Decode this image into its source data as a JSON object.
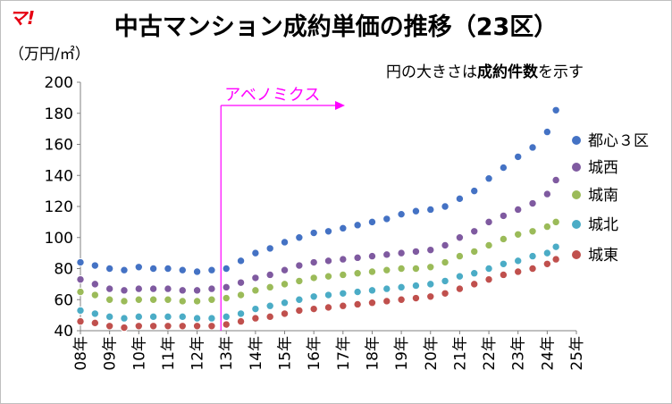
{
  "logo": "マ!",
  "title": "中古マンション成約単価の推移（23区）",
  "unit_label": "（万円/㎡）",
  "note": {
    "part1": "円の大きさは",
    "bold1": "成約件数",
    "part2": "を示す"
  },
  "annotation": "アベノミクス",
  "colors": {
    "都心3区": "#4472c4",
    "城西": "#7f5aa0",
    "城南": "#9bbb59",
    "城北": "#4bacc6",
    "城東": "#c0504d",
    "annotation": "#ff00ff"
  },
  "chart_data": {
    "type": "scatter",
    "ylim": [
      40,
      200
    ],
    "yticks": [
      40,
      60,
      80,
      100,
      120,
      140,
      160,
      180,
      200
    ],
    "x_categories": [
      "08年",
      "09年",
      "10年",
      "11年",
      "12年",
      "13年",
      "14年",
      "15年",
      "16年",
      "17年",
      "18年",
      "19年",
      "20年",
      "21年",
      "22年",
      "23年",
      "24年",
      "25年"
    ],
    "grid": false,
    "legend": "right",
    "marker_size_meaning": "成約件数",
    "annotation": {
      "label": "アベノミクス",
      "year": 2013.0
    },
    "series": [
      {
        "name": "都心３区",
        "key": "都心3区",
        "points": [
          [
            2008.0,
            84
          ],
          [
            2008.5,
            82
          ],
          [
            2009.0,
            80
          ],
          [
            2009.5,
            79
          ],
          [
            2010.0,
            81
          ],
          [
            2010.5,
            80
          ],
          [
            2011.0,
            80
          ],
          [
            2011.5,
            79
          ],
          [
            2012.0,
            78
          ],
          [
            2012.5,
            79
          ],
          [
            2013.0,
            80
          ],
          [
            2013.5,
            85
          ],
          [
            2014.0,
            90
          ],
          [
            2014.5,
            93
          ],
          [
            2015.0,
            97
          ],
          [
            2015.5,
            100
          ],
          [
            2016.0,
            103
          ],
          [
            2016.5,
            104
          ],
          [
            2017.0,
            106
          ],
          [
            2017.5,
            108
          ],
          [
            2018.0,
            110
          ],
          [
            2018.5,
            112
          ],
          [
            2019.0,
            115
          ],
          [
            2019.5,
            117
          ],
          [
            2020.0,
            118
          ],
          [
            2020.5,
            120
          ],
          [
            2021.0,
            125
          ],
          [
            2021.5,
            130
          ],
          [
            2022.0,
            138
          ],
          [
            2022.5,
            145
          ],
          [
            2023.0,
            152
          ],
          [
            2023.5,
            158
          ],
          [
            2024.0,
            168
          ],
          [
            2024.3,
            182
          ]
        ]
      },
      {
        "name": "城西",
        "key": "城西",
        "points": [
          [
            2008.0,
            73
          ],
          [
            2008.5,
            70
          ],
          [
            2009.0,
            67
          ],
          [
            2009.5,
            66
          ],
          [
            2010.0,
            67
          ],
          [
            2010.5,
            67
          ],
          [
            2011.0,
            67
          ],
          [
            2011.5,
            66
          ],
          [
            2012.0,
            66
          ],
          [
            2012.5,
            67
          ],
          [
            2013.0,
            68
          ],
          [
            2013.5,
            71
          ],
          [
            2014.0,
            74
          ],
          [
            2014.5,
            76
          ],
          [
            2015.0,
            79
          ],
          [
            2015.5,
            82
          ],
          [
            2016.0,
            84
          ],
          [
            2016.5,
            85
          ],
          [
            2017.0,
            86
          ],
          [
            2017.5,
            87
          ],
          [
            2018.0,
            88
          ],
          [
            2018.5,
            89
          ],
          [
            2019.0,
            90
          ],
          [
            2019.5,
            91
          ],
          [
            2020.0,
            92
          ],
          [
            2020.5,
            95
          ],
          [
            2021.0,
            100
          ],
          [
            2021.5,
            104
          ],
          [
            2022.0,
            110
          ],
          [
            2022.5,
            114
          ],
          [
            2023.0,
            118
          ],
          [
            2023.5,
            122
          ],
          [
            2024.0,
            128
          ],
          [
            2024.3,
            137
          ]
        ]
      },
      {
        "name": "城南",
        "key": "城南",
        "points": [
          [
            2008.0,
            65
          ],
          [
            2008.5,
            63
          ],
          [
            2009.0,
            60
          ],
          [
            2009.5,
            59
          ],
          [
            2010.0,
            60
          ],
          [
            2010.5,
            60
          ],
          [
            2011.0,
            60
          ],
          [
            2011.5,
            59
          ],
          [
            2012.0,
            59
          ],
          [
            2012.5,
            60
          ],
          [
            2013.0,
            61
          ],
          [
            2013.5,
            63
          ],
          [
            2014.0,
            66
          ],
          [
            2014.5,
            68
          ],
          [
            2015.0,
            70
          ],
          [
            2015.5,
            72
          ],
          [
            2016.0,
            74
          ],
          [
            2016.5,
            75
          ],
          [
            2017.0,
            76
          ],
          [
            2017.5,
            77
          ],
          [
            2018.0,
            78
          ],
          [
            2018.5,
            79
          ],
          [
            2019.0,
            80
          ],
          [
            2019.5,
            80
          ],
          [
            2020.0,
            81
          ],
          [
            2020.5,
            84
          ],
          [
            2021.0,
            88
          ],
          [
            2021.5,
            91
          ],
          [
            2022.0,
            95
          ],
          [
            2022.5,
            99
          ],
          [
            2023.0,
            102
          ],
          [
            2023.5,
            104
          ],
          [
            2024.0,
            107
          ],
          [
            2024.3,
            110
          ]
        ]
      },
      {
        "name": "城北",
        "key": "城北",
        "points": [
          [
            2008.0,
            53
          ],
          [
            2008.5,
            51
          ],
          [
            2009.0,
            49
          ],
          [
            2009.5,
            48
          ],
          [
            2010.0,
            49
          ],
          [
            2010.5,
            49
          ],
          [
            2011.0,
            49
          ],
          [
            2011.5,
            49
          ],
          [
            2012.0,
            48
          ],
          [
            2012.5,
            48
          ],
          [
            2013.0,
            49
          ],
          [
            2013.5,
            51
          ],
          [
            2014.0,
            54
          ],
          [
            2014.5,
            56
          ],
          [
            2015.0,
            58
          ],
          [
            2015.5,
            60
          ],
          [
            2016.0,
            62
          ],
          [
            2016.5,
            63
          ],
          [
            2017.0,
            64
          ],
          [
            2017.5,
            65
          ],
          [
            2018.0,
            66
          ],
          [
            2018.5,
            67
          ],
          [
            2019.0,
            68
          ],
          [
            2019.5,
            69
          ],
          [
            2020.0,
            70
          ],
          [
            2020.5,
            72
          ],
          [
            2021.0,
            75
          ],
          [
            2021.5,
            77
          ],
          [
            2022.0,
            80
          ],
          [
            2022.5,
            83
          ],
          [
            2023.0,
            85
          ],
          [
            2023.5,
            88
          ],
          [
            2024.0,
            90
          ],
          [
            2024.3,
            94
          ]
        ]
      },
      {
        "name": "城東",
        "key": "城東",
        "points": [
          [
            2008.0,
            46
          ],
          [
            2008.5,
            45
          ],
          [
            2009.0,
            43
          ],
          [
            2009.5,
            42
          ],
          [
            2010.0,
            43
          ],
          [
            2010.5,
            43
          ],
          [
            2011.0,
            43
          ],
          [
            2011.5,
            43
          ],
          [
            2012.0,
            43
          ],
          [
            2012.5,
            43
          ],
          [
            2013.0,
            44
          ],
          [
            2013.5,
            46
          ],
          [
            2014.0,
            48
          ],
          [
            2014.5,
            49
          ],
          [
            2015.0,
            51
          ],
          [
            2015.5,
            53
          ],
          [
            2016.0,
            54
          ],
          [
            2016.5,
            55
          ],
          [
            2017.0,
            56
          ],
          [
            2017.5,
            57
          ],
          [
            2018.0,
            58
          ],
          [
            2018.5,
            59
          ],
          [
            2019.0,
            60
          ],
          [
            2019.5,
            61
          ],
          [
            2020.0,
            62
          ],
          [
            2020.5,
            64
          ],
          [
            2021.0,
            67
          ],
          [
            2021.5,
            70
          ],
          [
            2022.0,
            73
          ],
          [
            2022.5,
            76
          ],
          [
            2023.0,
            78
          ],
          [
            2023.5,
            80
          ],
          [
            2024.0,
            83
          ],
          [
            2024.3,
            86
          ]
        ]
      }
    ]
  }
}
